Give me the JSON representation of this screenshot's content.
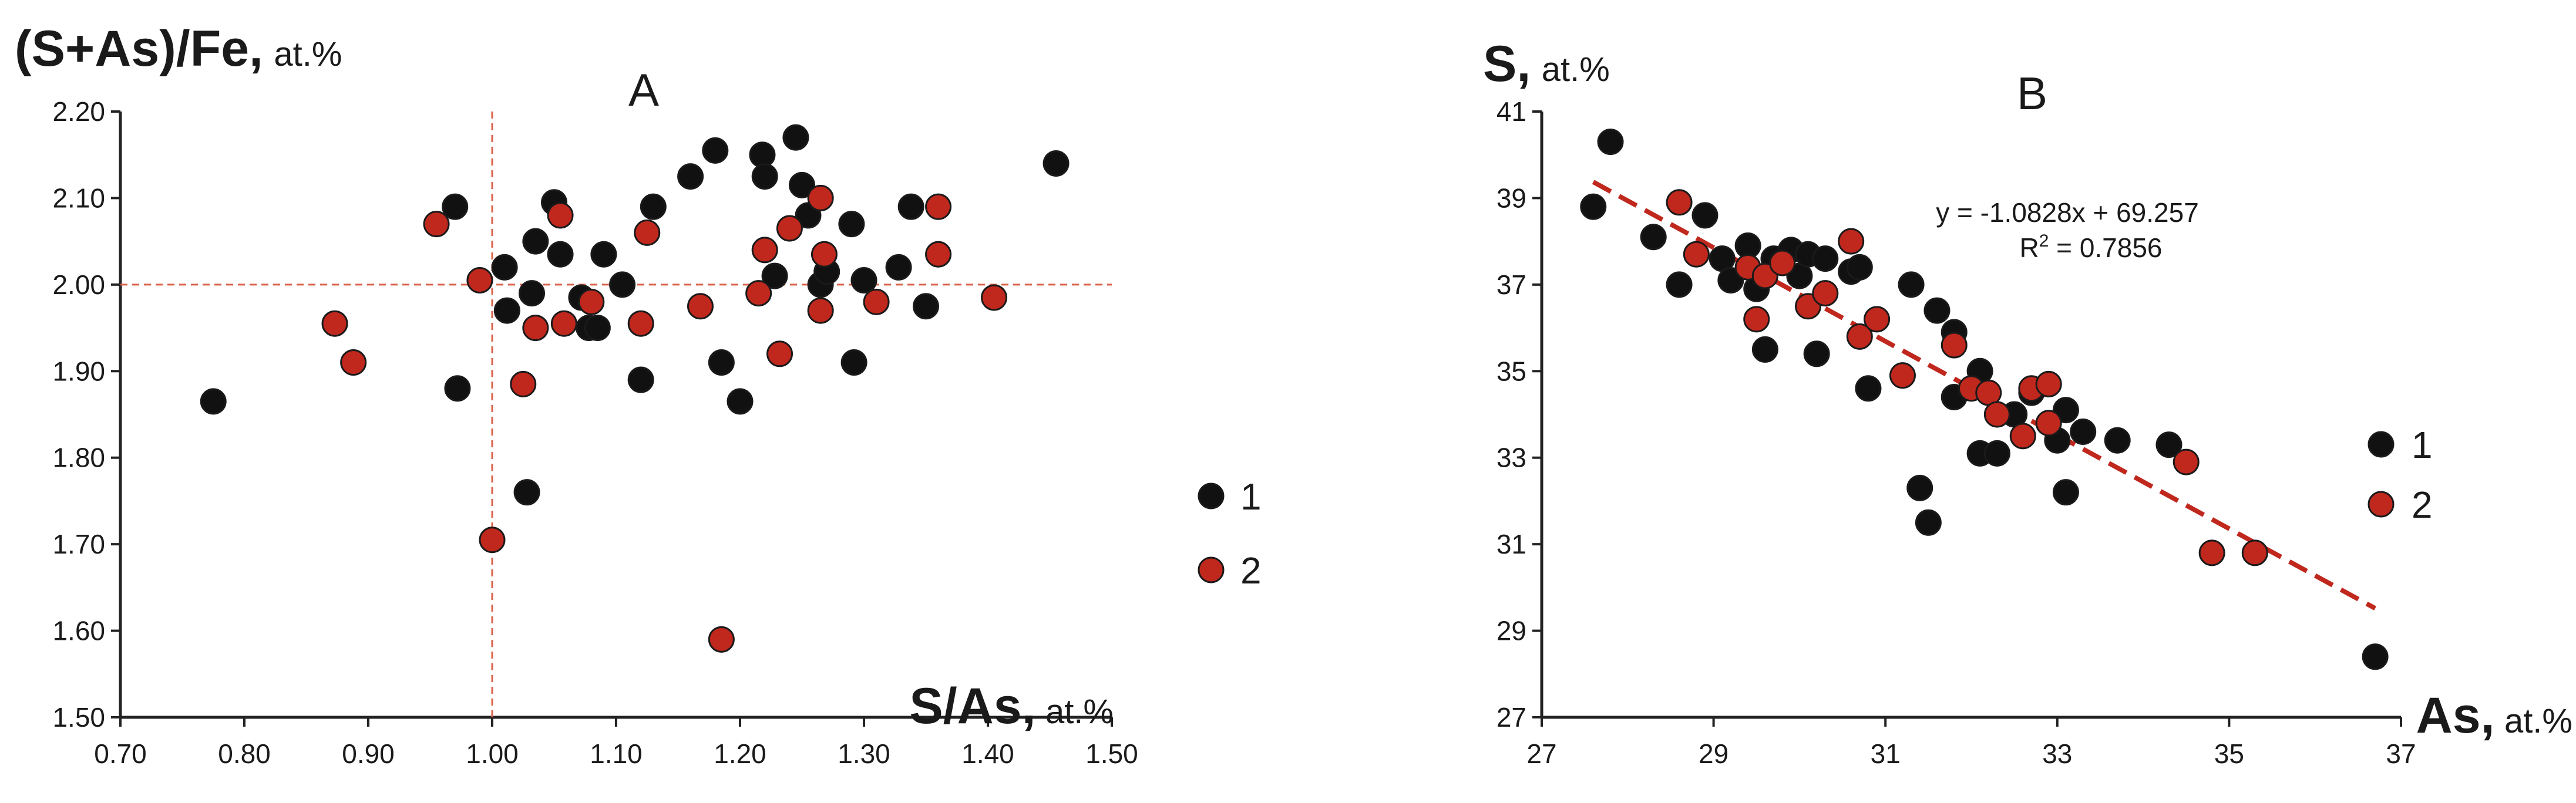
{
  "chart_data": [
    {
      "type": "scatter",
      "panel_letter": "A",
      "ylabel_main": "(S+As)/Fe,",
      "ylabel_unit": "at.%",
      "xlabel_main": "S/As,",
      "xlabel_unit": "at.%",
      "xlim": [
        0.7,
        1.5
      ],
      "ylim": [
        1.5,
        2.2
      ],
      "xticks": [
        "0.70",
        "0.80",
        "0.90",
        "1.00",
        "1.10",
        "1.20",
        "1.30",
        "1.40",
        "1.50"
      ],
      "yticks": [
        "1.50",
        "1.60",
        "1.70",
        "1.80",
        "1.90",
        "2.00",
        "2.10",
        "2.20"
      ],
      "reference_lines": {
        "x": 1.0,
        "y": 2.0
      },
      "legend": [
        "1",
        "2"
      ],
      "colors": {
        "1": "#111111",
        "2": "#c0281e",
        "reference": "#d9624a"
      },
      "series": [
        {
          "name": "1",
          "points": [
            [
              0.775,
              1.865
            ],
            [
              0.97,
              2.09
            ],
            [
              0.972,
              1.88
            ],
            [
              1.01,
              2.02
            ],
            [
              1.012,
              1.97
            ],
            [
              1.028,
              1.76
            ],
            [
              1.032,
              1.99
            ],
            [
              1.035,
              2.05
            ],
            [
              1.05,
              2.095
            ],
            [
              1.055,
              2.035
            ],
            [
              1.072,
              1.985
            ],
            [
              1.078,
              1.95
            ],
            [
              1.085,
              1.95
            ],
            [
              1.09,
              2.035
            ],
            [
              1.105,
              2.0
            ],
            [
              1.12,
              1.89
            ],
            [
              1.13,
              2.09
            ],
            [
              1.16,
              2.125
            ],
            [
              1.18,
              2.155
            ],
            [
              1.185,
              1.91
            ],
            [
              1.2,
              1.865
            ],
            [
              1.218,
              2.15
            ],
            [
              1.22,
              2.125
            ],
            [
              1.228,
              2.01
            ],
            [
              1.245,
              2.17
            ],
            [
              1.25,
              2.115
            ],
            [
              1.255,
              2.08
            ],
            [
              1.265,
              2.0
            ],
            [
              1.27,
              2.015
            ],
            [
              1.29,
              2.07
            ],
            [
              1.292,
              1.91
            ],
            [
              1.3,
              2.005
            ],
            [
              1.328,
              2.02
            ],
            [
              1.338,
              2.09
            ],
            [
              1.35,
              1.975
            ],
            [
              1.455,
              2.14
            ]
          ]
        },
        {
          "name": "2",
          "points": [
            [
              0.873,
              1.955
            ],
            [
              0.888,
              1.91
            ],
            [
              0.955,
              2.07
            ],
            [
              0.99,
              2.005
            ],
            [
              1.0,
              1.705
            ],
            [
              1.025,
              1.885
            ],
            [
              1.035,
              1.95
            ],
            [
              1.055,
              2.08
            ],
            [
              1.058,
              1.955
            ],
            [
              1.08,
              1.98
            ],
            [
              1.12,
              1.955
            ],
            [
              1.125,
              2.06
            ],
            [
              1.168,
              1.975
            ],
            [
              1.185,
              1.59
            ],
            [
              1.215,
              1.99
            ],
            [
              1.22,
              2.04
            ],
            [
              1.232,
              1.92
            ],
            [
              1.24,
              2.065
            ],
            [
              1.265,
              2.1
            ],
            [
              1.265,
              1.97
            ],
            [
              1.268,
              2.035
            ],
            [
              1.31,
              1.98
            ],
            [
              1.36,
              2.09
            ],
            [
              1.36,
              2.035
            ],
            [
              1.405,
              1.985
            ]
          ]
        }
      ]
    },
    {
      "type": "scatter",
      "panel_letter": "B",
      "ylabel_main": "S,",
      "ylabel_unit": "at.%",
      "xlabel_main": "As,",
      "xlabel_unit": "at.%",
      "xlim": [
        27,
        37
      ],
      "ylim": [
        27,
        41
      ],
      "xticks": [
        "27",
        "29",
        "31",
        "33",
        "35",
        "37"
      ],
      "yticks": [
        "27",
        "29",
        "31",
        "33",
        "35",
        "37",
        "39",
        "41"
      ],
      "legend": [
        "1",
        "2"
      ],
      "colors": {
        "1": "#111111",
        "2": "#c0281e",
        "trend": "#c0281e"
      },
      "trendline": {
        "slope": -1.0828,
        "intercept": 69.257,
        "x_range": [
          27.6,
          36.7
        ],
        "equation": "y = -1.0828x + 69.257",
        "r2_prefix": "R",
        "r2_sup": "2",
        "r2_value": " = 0.7856"
      },
      "series": [
        {
          "name": "1",
          "points": [
            [
              27.6,
              38.8
            ],
            [
              27.8,
              40.3
            ],
            [
              28.3,
              38.1
            ],
            [
              28.6,
              37.0
            ],
            [
              28.9,
              38.6
            ],
            [
              29.1,
              37.6
            ],
            [
              29.2,
              37.1
            ],
            [
              29.4,
              37.9
            ],
            [
              29.5,
              36.9
            ],
            [
              29.6,
              35.5
            ],
            [
              29.7,
              37.6
            ],
            [
              29.9,
              37.8
            ],
            [
              30.0,
              37.2
            ],
            [
              30.1,
              37.7
            ],
            [
              30.2,
              35.4
            ],
            [
              30.3,
              37.6
            ],
            [
              30.6,
              37.3
            ],
            [
              30.7,
              37.4
            ],
            [
              30.8,
              34.6
            ],
            [
              31.3,
              37.0
            ],
            [
              31.4,
              32.3
            ],
            [
              31.5,
              31.5
            ],
            [
              31.6,
              36.4
            ],
            [
              31.8,
              35.9
            ],
            [
              31.8,
              34.4
            ],
            [
              32.1,
              35.0
            ],
            [
              32.1,
              33.1
            ],
            [
              32.3,
              33.1
            ],
            [
              32.5,
              34.0
            ],
            [
              32.7,
              34.5
            ],
            [
              32.9,
              34.7
            ],
            [
              33.0,
              33.4
            ],
            [
              33.1,
              34.1
            ],
            [
              33.1,
              32.2
            ],
            [
              33.3,
              33.6
            ],
            [
              33.7,
              33.4
            ],
            [
              34.3,
              33.3
            ],
            [
              36.7,
              28.4
            ]
          ]
        },
        {
          "name": "2",
          "points": [
            [
              28.6,
              38.9
            ],
            [
              28.8,
              37.7
            ],
            [
              29.4,
              37.4
            ],
            [
              29.6,
              37.2
            ],
            [
              29.8,
              37.5
            ],
            [
              29.5,
              36.2
            ],
            [
              30.1,
              36.5
            ],
            [
              30.3,
              36.8
            ],
            [
              30.6,
              38.0
            ],
            [
              30.7,
              35.8
            ],
            [
              30.9,
              36.2
            ],
            [
              31.2,
              34.9
            ],
            [
              31.8,
              35.6
            ],
            [
              32.0,
              34.6
            ],
            [
              32.2,
              34.5
            ],
            [
              32.3,
              34.0
            ],
            [
              32.6,
              33.5
            ],
            [
              32.7,
              34.6
            ],
            [
              32.9,
              34.7
            ],
            [
              32.9,
              33.8
            ],
            [
              34.5,
              32.9
            ],
            [
              34.8,
              30.8
            ],
            [
              35.3,
              30.8
            ]
          ]
        }
      ]
    }
  ]
}
